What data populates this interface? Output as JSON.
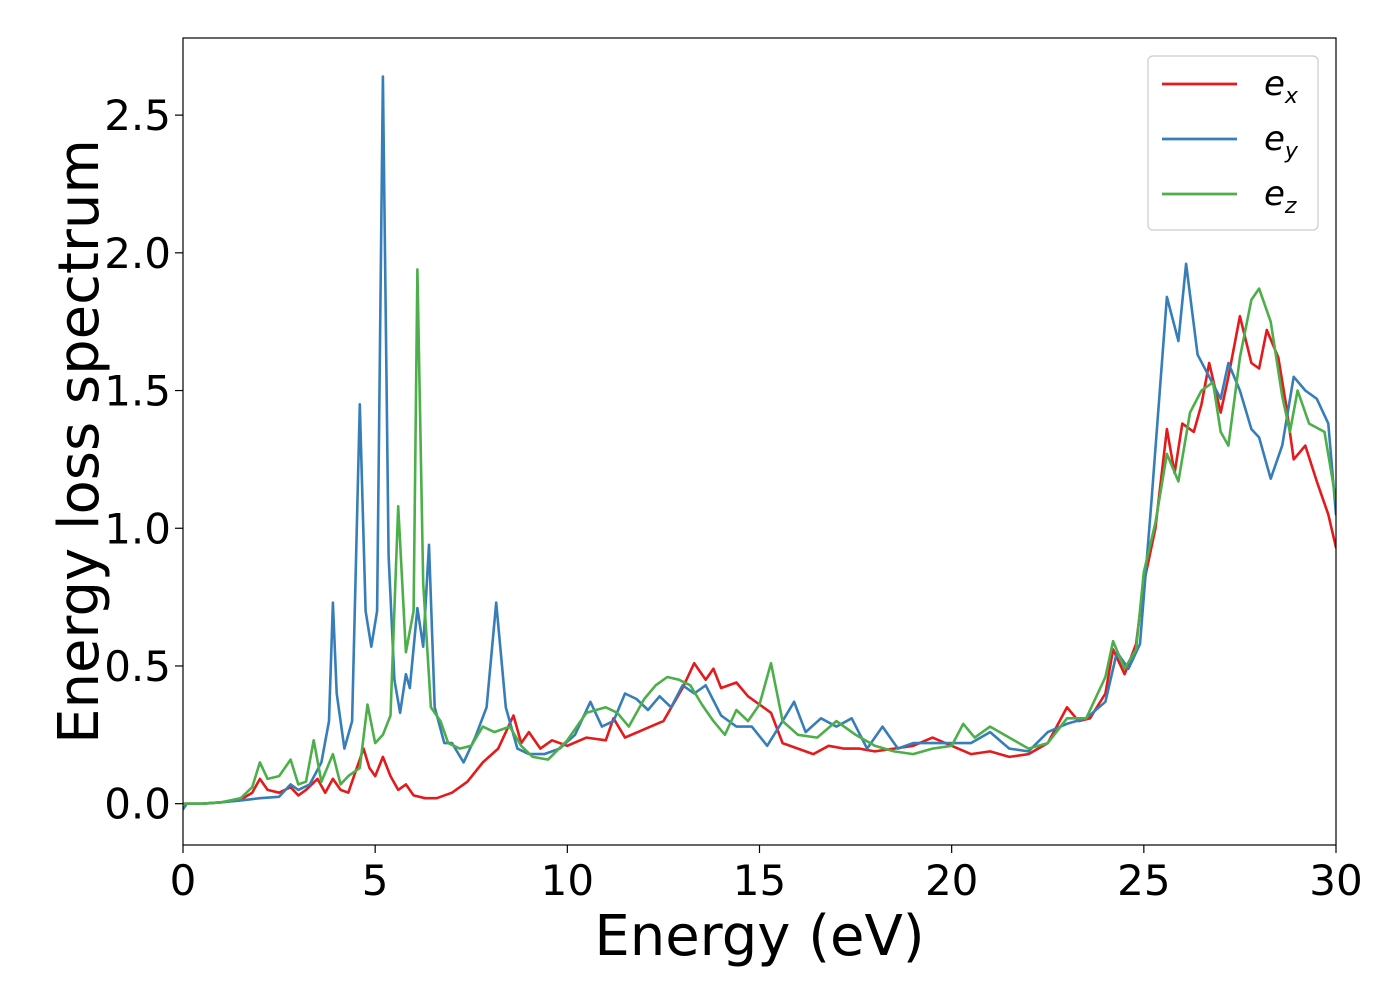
{
  "chart_data": {
    "type": "line",
    "xlabel": "Energy (eV)",
    "ylabel": "Energy loss spectrum",
    "xlim": [
      0,
      30
    ],
    "ylim": [
      -0.15,
      2.78
    ],
    "x_ticks": [
      0,
      5,
      10,
      15,
      20,
      25,
      30
    ],
    "x_tick_labels": [
      "0",
      "5",
      "10",
      "15",
      "20",
      "25",
      "30"
    ],
    "y_ticks": [
      0.0,
      0.5,
      1.0,
      1.5,
      2.0,
      2.5
    ],
    "y_tick_labels": [
      "0.0",
      "0.5",
      "1.0",
      "1.5",
      "2.0",
      "2.5"
    ],
    "grid": false,
    "legend_position": "top-right",
    "series": [
      {
        "name": "e_x",
        "legend_base": "e",
        "legend_sub": "x",
        "color": "#e41a1c",
        "points": [
          [
            0,
            0
          ],
          [
            0.5,
            0.0
          ],
          [
            1.0,
            0.005
          ],
          [
            1.5,
            0.015
          ],
          [
            1.8,
            0.04
          ],
          [
            2.0,
            0.09
          ],
          [
            2.2,
            0.05
          ],
          [
            2.5,
            0.04
          ],
          [
            2.8,
            0.06
          ],
          [
            3.0,
            0.03
          ],
          [
            3.2,
            0.05
          ],
          [
            3.5,
            0.09
          ],
          [
            3.7,
            0.04
          ],
          [
            3.9,
            0.09
          ],
          [
            4.1,
            0.05
          ],
          [
            4.3,
            0.04
          ],
          [
            4.5,
            0.12
          ],
          [
            4.7,
            0.2
          ],
          [
            4.85,
            0.13
          ],
          [
            5.0,
            0.1
          ],
          [
            5.2,
            0.17
          ],
          [
            5.4,
            0.1
          ],
          [
            5.6,
            0.05
          ],
          [
            5.8,
            0.07
          ],
          [
            6.0,
            0.03
          ],
          [
            6.3,
            0.02
          ],
          [
            6.6,
            0.02
          ],
          [
            7.0,
            0.04
          ],
          [
            7.4,
            0.08
          ],
          [
            7.8,
            0.15
          ],
          [
            8.2,
            0.2
          ],
          [
            8.6,
            0.32
          ],
          [
            8.8,
            0.22
          ],
          [
            9.0,
            0.26
          ],
          [
            9.3,
            0.2
          ],
          [
            9.6,
            0.23
          ],
          [
            10.0,
            0.21
          ],
          [
            10.5,
            0.24
          ],
          [
            11.0,
            0.23
          ],
          [
            11.2,
            0.31
          ],
          [
            11.5,
            0.24
          ],
          [
            12.0,
            0.27
          ],
          [
            12.5,
            0.3
          ],
          [
            13.0,
            0.42
          ],
          [
            13.3,
            0.51
          ],
          [
            13.6,
            0.45
          ],
          [
            13.8,
            0.49
          ],
          [
            14.0,
            0.42
          ],
          [
            14.4,
            0.44
          ],
          [
            14.7,
            0.39
          ],
          [
            15.0,
            0.36
          ],
          [
            15.3,
            0.33
          ],
          [
            15.6,
            0.22
          ],
          [
            16.0,
            0.2
          ],
          [
            16.4,
            0.18
          ],
          [
            16.8,
            0.21
          ],
          [
            17.2,
            0.2
          ],
          [
            17.6,
            0.2
          ],
          [
            18.0,
            0.19
          ],
          [
            18.5,
            0.2
          ],
          [
            19.0,
            0.21
          ],
          [
            19.5,
            0.24
          ],
          [
            20.0,
            0.21
          ],
          [
            20.5,
            0.18
          ],
          [
            21.0,
            0.19
          ],
          [
            21.5,
            0.17
          ],
          [
            22.0,
            0.18
          ],
          [
            22.5,
            0.22
          ],
          [
            23.0,
            0.35
          ],
          [
            23.3,
            0.3
          ],
          [
            23.6,
            0.31
          ],
          [
            24.0,
            0.4
          ],
          [
            24.2,
            0.56
          ],
          [
            24.5,
            0.47
          ],
          [
            24.8,
            0.58
          ],
          [
            25.0,
            0.8
          ],
          [
            25.3,
            1.0
          ],
          [
            25.6,
            1.36
          ],
          [
            25.8,
            1.2
          ],
          [
            26.0,
            1.38
          ],
          [
            26.3,
            1.35
          ],
          [
            26.5,
            1.45
          ],
          [
            26.7,
            1.6
          ],
          [
            27.0,
            1.42
          ],
          [
            27.2,
            1.55
          ],
          [
            27.5,
            1.77
          ],
          [
            27.8,
            1.6
          ],
          [
            28.0,
            1.58
          ],
          [
            28.2,
            1.72
          ],
          [
            28.5,
            1.62
          ],
          [
            28.7,
            1.45
          ],
          [
            28.9,
            1.25
          ],
          [
            29.2,
            1.3
          ],
          [
            29.5,
            1.17
          ],
          [
            29.8,
            1.05
          ],
          [
            30.0,
            0.93
          ]
        ]
      },
      {
        "name": "e_y",
        "legend_base": "e",
        "legend_sub": "y",
        "color": "#377eb8",
        "points": [
          [
            0,
            -0.02
          ],
          [
            0.1,
            0.0
          ],
          [
            0.5,
            0.0
          ],
          [
            1.0,
            0.005
          ],
          [
            1.5,
            0.012
          ],
          [
            2.0,
            0.02
          ],
          [
            2.5,
            0.025
          ],
          [
            2.8,
            0.07
          ],
          [
            3.0,
            0.05
          ],
          [
            3.3,
            0.07
          ],
          [
            3.6,
            0.15
          ],
          [
            3.8,
            0.3
          ],
          [
            3.9,
            0.73
          ],
          [
            4.0,
            0.4
          ],
          [
            4.2,
            0.2
          ],
          [
            4.4,
            0.3
          ],
          [
            4.6,
            1.45
          ],
          [
            4.75,
            0.7
          ],
          [
            4.9,
            0.57
          ],
          [
            5.05,
            0.7
          ],
          [
            5.2,
            2.64
          ],
          [
            5.35,
            0.9
          ],
          [
            5.5,
            0.45
          ],
          [
            5.65,
            0.33
          ],
          [
            5.8,
            0.47
          ],
          [
            5.9,
            0.42
          ],
          [
            6.1,
            0.71
          ],
          [
            6.25,
            0.57
          ],
          [
            6.4,
            0.94
          ],
          [
            6.55,
            0.35
          ],
          [
            6.8,
            0.22
          ],
          [
            7.0,
            0.22
          ],
          [
            7.3,
            0.15
          ],
          [
            7.6,
            0.24
          ],
          [
            7.9,
            0.35
          ],
          [
            8.15,
            0.73
          ],
          [
            8.4,
            0.35
          ],
          [
            8.7,
            0.2
          ],
          [
            9.0,
            0.18
          ],
          [
            9.4,
            0.18
          ],
          [
            9.8,
            0.2
          ],
          [
            10.2,
            0.25
          ],
          [
            10.6,
            0.37
          ],
          [
            10.9,
            0.28
          ],
          [
            11.2,
            0.3
          ],
          [
            11.5,
            0.4
          ],
          [
            11.8,
            0.38
          ],
          [
            12.1,
            0.34
          ],
          [
            12.4,
            0.39
          ],
          [
            12.7,
            0.35
          ],
          [
            13.0,
            0.43
          ],
          [
            13.3,
            0.4
          ],
          [
            13.6,
            0.43
          ],
          [
            14.0,
            0.32
          ],
          [
            14.4,
            0.28
          ],
          [
            14.8,
            0.28
          ],
          [
            15.2,
            0.21
          ],
          [
            15.6,
            0.3
          ],
          [
            15.9,
            0.37
          ],
          [
            16.2,
            0.26
          ],
          [
            16.6,
            0.31
          ],
          [
            17.0,
            0.28
          ],
          [
            17.4,
            0.31
          ],
          [
            17.8,
            0.2
          ],
          [
            18.2,
            0.28
          ],
          [
            18.6,
            0.2
          ],
          [
            19.0,
            0.22
          ],
          [
            19.5,
            0.22
          ],
          [
            20.0,
            0.22
          ],
          [
            20.5,
            0.22
          ],
          [
            21.0,
            0.26
          ],
          [
            21.5,
            0.2
          ],
          [
            22.0,
            0.19
          ],
          [
            22.5,
            0.26
          ],
          [
            23.0,
            0.29
          ],
          [
            23.5,
            0.31
          ],
          [
            24.0,
            0.37
          ],
          [
            24.3,
            0.55
          ],
          [
            24.6,
            0.49
          ],
          [
            24.9,
            0.58
          ],
          [
            25.2,
            1.1
          ],
          [
            25.6,
            1.84
          ],
          [
            25.9,
            1.68
          ],
          [
            26.1,
            1.96
          ],
          [
            26.4,
            1.63
          ],
          [
            26.7,
            1.55
          ],
          [
            27.0,
            1.47
          ],
          [
            27.2,
            1.6
          ],
          [
            27.5,
            1.5
          ],
          [
            27.8,
            1.36
          ],
          [
            28.0,
            1.33
          ],
          [
            28.3,
            1.18
          ],
          [
            28.6,
            1.3
          ],
          [
            28.9,
            1.55
          ],
          [
            29.2,
            1.5
          ],
          [
            29.5,
            1.47
          ],
          [
            29.8,
            1.38
          ],
          [
            30.0,
            1.05
          ]
        ]
      },
      {
        "name": "e_z",
        "legend_base": "e",
        "legend_sub": "z",
        "color": "#4daf4a",
        "points": [
          [
            0,
            0
          ],
          [
            0.5,
            0.0
          ],
          [
            1.0,
            0.005
          ],
          [
            1.5,
            0.02
          ],
          [
            1.8,
            0.06
          ],
          [
            2.0,
            0.15
          ],
          [
            2.2,
            0.09
          ],
          [
            2.5,
            0.1
          ],
          [
            2.8,
            0.16
          ],
          [
            3.0,
            0.07
          ],
          [
            3.2,
            0.08
          ],
          [
            3.4,
            0.23
          ],
          [
            3.6,
            0.08
          ],
          [
            3.9,
            0.18
          ],
          [
            4.1,
            0.07
          ],
          [
            4.3,
            0.1
          ],
          [
            4.6,
            0.13
          ],
          [
            4.8,
            0.36
          ],
          [
            5.0,
            0.22
          ],
          [
            5.2,
            0.25
          ],
          [
            5.4,
            0.32
          ],
          [
            5.6,
            1.08
          ],
          [
            5.8,
            0.55
          ],
          [
            6.0,
            0.7
          ],
          [
            6.1,
            1.94
          ],
          [
            6.25,
            0.8
          ],
          [
            6.45,
            0.35
          ],
          [
            6.7,
            0.3
          ],
          [
            6.9,
            0.22
          ],
          [
            7.2,
            0.2
          ],
          [
            7.5,
            0.21
          ],
          [
            7.8,
            0.28
          ],
          [
            8.1,
            0.26
          ],
          [
            8.5,
            0.28
          ],
          [
            8.8,
            0.21
          ],
          [
            9.1,
            0.17
          ],
          [
            9.5,
            0.16
          ],
          [
            10.0,
            0.23
          ],
          [
            10.5,
            0.33
          ],
          [
            11.0,
            0.35
          ],
          [
            11.3,
            0.33
          ],
          [
            11.6,
            0.28
          ],
          [
            12.0,
            0.38
          ],
          [
            12.3,
            0.43
          ],
          [
            12.6,
            0.46
          ],
          [
            12.9,
            0.45
          ],
          [
            13.2,
            0.43
          ],
          [
            13.5,
            0.36
          ],
          [
            13.8,
            0.3
          ],
          [
            14.1,
            0.25
          ],
          [
            14.4,
            0.34
          ],
          [
            14.7,
            0.3
          ],
          [
            15.0,
            0.36
          ],
          [
            15.3,
            0.51
          ],
          [
            15.6,
            0.3
          ],
          [
            16.0,
            0.25
          ],
          [
            16.5,
            0.24
          ],
          [
            17.0,
            0.3
          ],
          [
            17.5,
            0.25
          ],
          [
            18.0,
            0.21
          ],
          [
            18.5,
            0.19
          ],
          [
            19.0,
            0.18
          ],
          [
            19.5,
            0.2
          ],
          [
            20.0,
            0.21
          ],
          [
            20.3,
            0.29
          ],
          [
            20.6,
            0.24
          ],
          [
            21.0,
            0.28
          ],
          [
            21.5,
            0.24
          ],
          [
            22.0,
            0.2
          ],
          [
            22.5,
            0.22
          ],
          [
            23.0,
            0.31
          ],
          [
            23.5,
            0.31
          ],
          [
            24.0,
            0.46
          ],
          [
            24.2,
            0.59
          ],
          [
            24.5,
            0.49
          ],
          [
            24.8,
            0.56
          ],
          [
            25.0,
            0.84
          ],
          [
            25.3,
            1.02
          ],
          [
            25.6,
            1.27
          ],
          [
            25.9,
            1.17
          ],
          [
            26.2,
            1.42
          ],
          [
            26.5,
            1.5
          ],
          [
            26.8,
            1.53
          ],
          [
            27.0,
            1.35
          ],
          [
            27.2,
            1.3
          ],
          [
            27.5,
            1.62
          ],
          [
            27.8,
            1.83
          ],
          [
            28.0,
            1.87
          ],
          [
            28.3,
            1.75
          ],
          [
            28.6,
            1.48
          ],
          [
            28.8,
            1.35
          ],
          [
            29.0,
            1.5
          ],
          [
            29.3,
            1.38
          ],
          [
            29.7,
            1.35
          ],
          [
            30.0,
            1.1
          ]
        ]
      }
    ]
  }
}
